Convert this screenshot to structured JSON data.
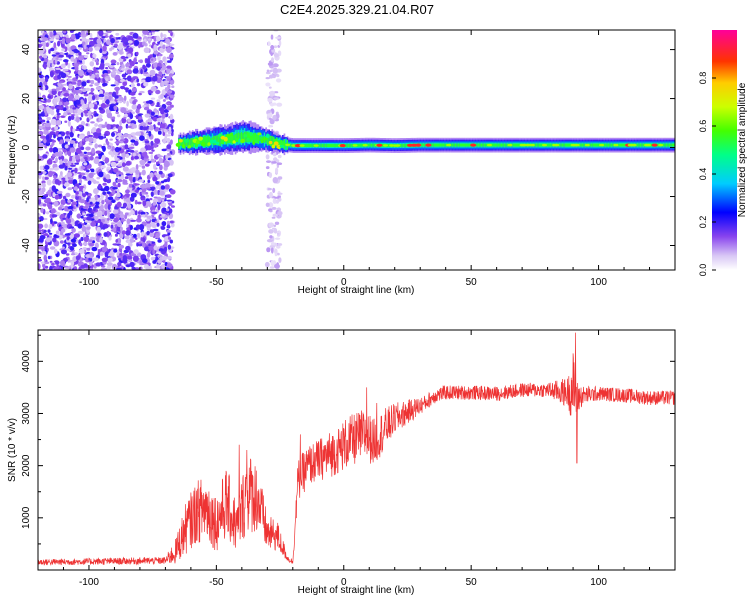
{
  "title": "C2E4.2025.329.21.04.R07",
  "chart_data": [
    {
      "type": "heatmap",
      "title": "C2E4.2025.329.21.04.R07",
      "xlabel": "Height of straight line (km)",
      "ylabel": "Frequency (Hz)",
      "xlim": [
        -120,
        130
      ],
      "ylim": [
        -50,
        48
      ],
      "xticks": [
        -100,
        -50,
        0,
        50,
        100
      ],
      "yticks": [
        -40,
        -20,
        0,
        20,
        40
      ],
      "colorbar": {
        "label": "Normalized spectral amplitude",
        "range": [
          0,
          1
        ],
        "ticks": [
          0.0,
          0.2,
          0.4,
          0.6,
          0.8
        ]
      },
      "regions": [
        {
          "name": "noise-dense",
          "x": [
            -120,
            -67
          ],
          "y": [
            -50,
            48
          ],
          "amplitude": 0.12
        },
        {
          "name": "noise-sparse-column",
          "x": [
            -30,
            -25
          ],
          "y": [
            -50,
            48
          ],
          "amplitude": 0.05
        }
      ],
      "ridge": {
        "x": [
          -65,
          -60,
          -55,
          -50,
          -45,
          -40,
          -35,
          -30,
          -25,
          -20,
          -10,
          0,
          10,
          20,
          30,
          50,
          70,
          90,
          110,
          130
        ],
        "frequency": [
          1.5,
          2.0,
          2.5,
          3.0,
          3.5,
          4.5,
          4.0,
          3.0,
          1.5,
          0.8,
          0.8,
          0.8,
          1.0,
          0.8,
          1.0,
          1.0,
          1.0,
          1.0,
          1.0,
          1.0
        ],
        "half_width": [
          3,
          4,
          4,
          5,
          5,
          6,
          5,
          4,
          3,
          3,
          3,
          3,
          3,
          3,
          3,
          3,
          3,
          3,
          3,
          3
        ]
      }
    },
    {
      "type": "line",
      "xlabel": "Height of straight line (km)",
      "ylabel": "SNR (10 * v/v)",
      "xlim": [
        -120,
        130
      ],
      "ylim": [
        0,
        4600
      ],
      "xticks": [
        -100,
        -50,
        0,
        50,
        100
      ],
      "yticks": [
        1000,
        2000,
        3000,
        4000
      ],
      "series": [
        {
          "name": "SNR",
          "color": "#ee3333",
          "x": [
            -120,
            -70,
            -66,
            -62,
            -58,
            -54,
            -50,
            -46,
            -42,
            -38,
            -34,
            -30,
            -26,
            -22,
            -20,
            -18,
            -14,
            -10,
            -6,
            -2,
            0,
            4,
            8,
            12,
            16,
            20,
            24,
            28,
            32,
            36,
            40,
            50,
            60,
            70,
            80,
            88,
            90,
            92,
            94,
            100,
            110,
            120,
            130
          ],
          "y": [
            150,
            180,
            350,
            800,
            1100,
            1200,
            900,
            1300,
            800,
            1500,
            1400,
            700,
            650,
            220,
            150,
            1700,
            2000,
            2100,
            2200,
            2300,
            2400,
            2500,
            2600,
            2450,
            2700,
            2900,
            3000,
            3100,
            3200,
            3350,
            3400,
            3400,
            3380,
            3450,
            3450,
            3400,
            3500,
            3300,
            3350,
            3380,
            3350,
            3300,
            3300
          ],
          "noise": [
            60,
            70,
            250,
            500,
            600,
            650,
            550,
            700,
            500,
            800,
            700,
            350,
            300,
            60,
            50,
            400,
            400,
            400,
            450,
            450,
            500,
            500,
            500,
            450,
            400,
            300,
            250,
            200,
            150,
            150,
            140,
            140,
            140,
            140,
            140,
            300,
            700,
            300,
            180,
            140,
            140,
            140,
            140
          ]
        }
      ],
      "spikes": [
        {
          "x": -41,
          "y": 2400
        },
        {
          "x": -38,
          "y": 2300
        },
        {
          "x": -17,
          "y": 2600
        },
        {
          "x": 9,
          "y": 3500
        },
        {
          "x": 13,
          "y": 3200
        },
        {
          "x": 91,
          "y": 4550
        },
        {
          "x": 91.5,
          "y": 2050
        }
      ]
    }
  ]
}
